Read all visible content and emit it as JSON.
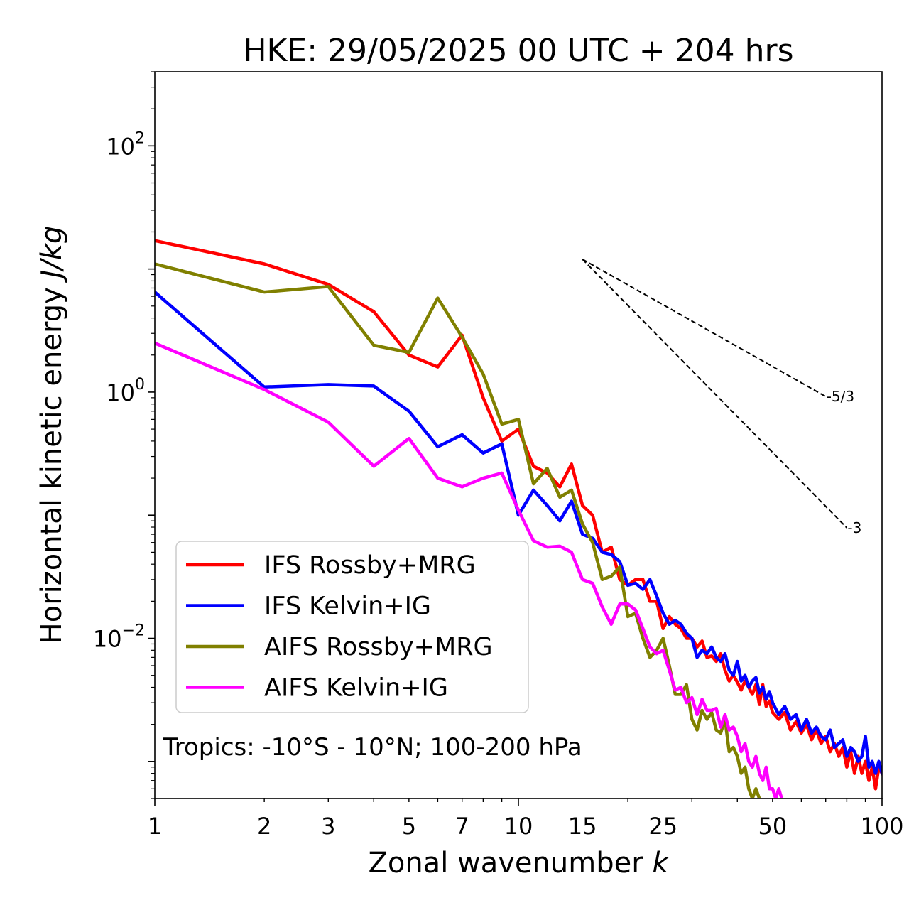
{
  "chart_data": {
    "type": "line",
    "title": "HKE: 29/05/2025 00 UTC + 204 hrs",
    "xlabel": "Zonal wavenumber",
    "xlabel_var": "k",
    "ylabel": "Horizontal kinetic energy",
    "ylabel_unit": "J/kg",
    "xscale": "log",
    "yscale": "log",
    "xlim": [
      1,
      100
    ],
    "ylim": [
      0.0005,
      400
    ],
    "x_ticks": [
      1,
      2,
      3,
      5,
      7,
      10,
      15,
      25,
      50,
      100
    ],
    "x_tick_labels": [
      "1",
      "2",
      "3",
      "5",
      "7",
      "10",
      "15",
      "25",
      "50",
      "100"
    ],
    "y_ticks": [
      {
        "value": 100,
        "base": "10",
        "exp": "2"
      },
      {
        "value": 1,
        "base": "10",
        "exp": "0"
      },
      {
        "value": 0.01,
        "base": "10",
        "exp": "−2"
      }
    ],
    "grid": false,
    "legend_position": "lower-left",
    "annotation": "Tropics: -10°S - 10°N; 100-200 hPa",
    "reference_lines": [
      {
        "label": "-5/3",
        "slope": -1.6667,
        "x_start": 15,
        "y_start": 12,
        "x_end": 70
      },
      {
        "label": "-3",
        "slope": -3,
        "x_start": 15,
        "y_start": 12,
        "x_end": 80
      }
    ],
    "series": [
      {
        "name": "IFS Rossby+MRG",
        "color": "#ff0000",
        "points": [
          [
            1,
            17
          ],
          [
            2,
            11
          ],
          [
            3,
            7.5
          ],
          [
            4,
            4.5
          ],
          [
            5,
            2
          ],
          [
            6,
            1.6
          ],
          [
            7,
            2.9
          ],
          [
            8,
            0.9
          ],
          [
            9,
            0.4
          ],
          [
            10,
            0.5
          ],
          [
            11,
            0.25
          ],
          [
            12,
            0.22
          ],
          [
            13,
            0.17
          ],
          [
            14,
            0.26
          ],
          [
            15,
            0.12
          ],
          [
            16,
            0.1
          ],
          [
            17,
            0.05
          ],
          [
            18,
            0.055
          ],
          [
            19,
            0.03
          ],
          [
            20,
            0.027
          ],
          [
            21,
            0.03
          ],
          [
            22,
            0.03
          ],
          [
            23,
            0.02
          ],
          [
            24,
            0.02
          ],
          [
            25,
            0.012
          ],
          [
            26,
            0.015
          ],
          [
            27,
            0.013
          ],
          [
            28,
            0.012
          ],
          [
            29,
            0.01
          ],
          [
            30,
            0.01
          ],
          [
            31,
            0.0085
          ],
          [
            32,
            0.0095
          ],
          [
            33,
            0.007
          ],
          [
            34,
            0.0072
          ],
          [
            35,
            0.0065
          ],
          [
            36,
            0.0075
          ],
          [
            37,
            0.0055
          ],
          [
            38,
            0.0045
          ],
          [
            39,
            0.005
          ],
          [
            40,
            0.0044
          ],
          [
            41,
            0.0038
          ],
          [
            42,
            0.0045
          ],
          [
            43,
            0.004
          ],
          [
            44,
            0.0035
          ],
          [
            45,
            0.0042
          ],
          [
            46,
            0.0029
          ],
          [
            47,
            0.0042
          ],
          [
            48,
            0.0028
          ],
          [
            49,
            0.0031
          ],
          [
            50,
            0.0025
          ],
          [
            52,
            0.0022
          ],
          [
            54,
            0.0025
          ],
          [
            56,
            0.0018
          ],
          [
            58,
            0.0021
          ],
          [
            60,
            0.0017
          ],
          [
            62,
            0.002
          ],
          [
            64,
            0.0015
          ],
          [
            66,
            0.0018
          ],
          [
            68,
            0.0014
          ],
          [
            70,
            0.0016
          ],
          [
            72,
            0.0012
          ],
          [
            74,
            0.0014
          ],
          [
            76,
            0.0011
          ],
          [
            78,
            0.0013
          ],
          [
            80,
            0.0009
          ],
          [
            82,
            0.0012
          ],
          [
            84,
            0.0008
          ],
          [
            86,
            0.0011
          ],
          [
            88,
            0.0008
          ],
          [
            90,
            0.001
          ],
          [
            92,
            0.0007
          ],
          [
            94,
            0.0009
          ],
          [
            96,
            0.0006
          ],
          [
            98,
            0.0009
          ],
          [
            100,
            0.0008
          ]
        ]
      },
      {
        "name": "IFS Kelvin+IG",
        "color": "#0000ff",
        "points": [
          [
            1,
            6.5
          ],
          [
            2,
            1.1
          ],
          [
            3,
            1.15
          ],
          [
            4,
            1.12
          ],
          [
            5,
            0.7
          ],
          [
            6,
            0.36
          ],
          [
            7,
            0.45
          ],
          [
            8,
            0.32
          ],
          [
            9,
            0.38
          ],
          [
            10,
            0.1
          ],
          [
            11,
            0.16
          ],
          [
            12,
            0.12
          ],
          [
            13,
            0.09
          ],
          [
            14,
            0.13
          ],
          [
            15,
            0.07
          ],
          [
            16,
            0.065
          ],
          [
            17,
            0.05
          ],
          [
            18,
            0.048
          ],
          [
            19,
            0.042
          ],
          [
            20,
            0.027
          ],
          [
            21,
            0.028
          ],
          [
            22,
            0.025
          ],
          [
            23,
            0.03
          ],
          [
            24,
            0.022
          ],
          [
            25,
            0.016
          ],
          [
            26,
            0.013
          ],
          [
            27,
            0.014
          ],
          [
            28,
            0.013
          ],
          [
            29,
            0.011
          ],
          [
            30,
            0.01
          ],
          [
            31,
            0.007
          ],
          [
            32,
            0.008
          ],
          [
            33,
            0.0075
          ],
          [
            34,
            0.0085
          ],
          [
            35,
            0.007
          ],
          [
            36,
            0.0065
          ],
          [
            37,
            0.0075
          ],
          [
            38,
            0.0055
          ],
          [
            39,
            0.005
          ],
          [
            40,
            0.0065
          ],
          [
            41,
            0.0045
          ],
          [
            42,
            0.005
          ],
          [
            43,
            0.004
          ],
          [
            44,
            0.0045
          ],
          [
            45,
            0.0048
          ],
          [
            46,
            0.0036
          ],
          [
            47,
            0.004
          ],
          [
            48,
            0.0032
          ],
          [
            49,
            0.0037
          ],
          [
            50,
            0.003
          ],
          [
            52,
            0.0024
          ],
          [
            54,
            0.0028
          ],
          [
            56,
            0.0022
          ],
          [
            58,
            0.0024
          ],
          [
            60,
            0.0018
          ],
          [
            62,
            0.0022
          ],
          [
            64,
            0.0017
          ],
          [
            66,
            0.0019
          ],
          [
            68,
            0.0016
          ],
          [
            70,
            0.0015
          ],
          [
            72,
            0.0018
          ],
          [
            74,
            0.0013
          ],
          [
            76,
            0.0014
          ],
          [
            78,
            0.0015
          ],
          [
            80,
            0.0011
          ],
          [
            82,
            0.0013
          ],
          [
            84,
            0.0012
          ],
          [
            86,
            0.001
          ],
          [
            88,
            0.0011
          ],
          [
            90,
            0.0016
          ],
          [
            92,
            0.0009
          ],
          [
            94,
            0.001
          ],
          [
            96,
            0.0008
          ],
          [
            98,
            0.001
          ],
          [
            100,
            0.0008
          ]
        ]
      },
      {
        "name": "AIFS Rossby+MRG",
        "color": "#808000",
        "points": [
          [
            1,
            11
          ],
          [
            2,
            6.5
          ],
          [
            3,
            7.2
          ],
          [
            4,
            2.4
          ],
          [
            5,
            2.1
          ],
          [
            6,
            5.8
          ],
          [
            7,
            2.8
          ],
          [
            8,
            1.4
          ],
          [
            9,
            0.55
          ],
          [
            10,
            0.6
          ],
          [
            11,
            0.18
          ],
          [
            12,
            0.24
          ],
          [
            13,
            0.14
          ],
          [
            14,
            0.16
          ],
          [
            15,
            0.085
          ],
          [
            16,
            0.06
          ],
          [
            17,
            0.03
          ],
          [
            18,
            0.032
          ],
          [
            19,
            0.038
          ],
          [
            20,
            0.015
          ],
          [
            21,
            0.016
          ],
          [
            22,
            0.01
          ],
          [
            23,
            0.007
          ],
          [
            24,
            0.008
          ],
          [
            25,
            0.01
          ],
          [
            26,
            0.006
          ],
          [
            27,
            0.0035
          ],
          [
            28,
            0.0035
          ],
          [
            29,
            0.0042
          ],
          [
            30,
            0.0022
          ],
          [
            31,
            0.0018
          ],
          [
            32,
            0.0026
          ],
          [
            33,
            0.0022
          ],
          [
            34,
            0.0025
          ],
          [
            35,
            0.0018
          ],
          [
            36,
            0.0017
          ],
          [
            37,
            0.0022
          ],
          [
            38,
            0.0012
          ],
          [
            39,
            0.0013
          ],
          [
            40,
            0.0011
          ],
          [
            41,
            0.0008
          ],
          [
            42,
            0.0009
          ],
          [
            43,
            0.0006
          ],
          [
            44,
            0.0005
          ],
          [
            45,
            0.0006
          ],
          [
            46,
            0.0005
          ]
        ]
      },
      {
        "name": "AIFS Kelvin+IG",
        "color": "#ff00ff",
        "points": [
          [
            1,
            2.5
          ],
          [
            2,
            1.05
          ],
          [
            3,
            0.57
          ],
          [
            4,
            0.25
          ],
          [
            5,
            0.42
          ],
          [
            6,
            0.2
          ],
          [
            7,
            0.17
          ],
          [
            8,
            0.2
          ],
          [
            9,
            0.22
          ],
          [
            10,
            0.11
          ],
          [
            11,
            0.062
          ],
          [
            12,
            0.055
          ],
          [
            13,
            0.056
          ],
          [
            14,
            0.05
          ],
          [
            15,
            0.03
          ],
          [
            16,
            0.028
          ],
          [
            17,
            0.018
          ],
          [
            18,
            0.013
          ],
          [
            19,
            0.019
          ],
          [
            20,
            0.019
          ],
          [
            21,
            0.017
          ],
          [
            22,
            0.012
          ],
          [
            23,
            0.0085
          ],
          [
            24,
            0.0075
          ],
          [
            25,
            0.008
          ],
          [
            26,
            0.0055
          ],
          [
            27,
            0.0038
          ],
          [
            28,
            0.004
          ],
          [
            29,
            0.003
          ],
          [
            30,
            0.0033
          ],
          [
            31,
            0.0024
          ],
          [
            32,
            0.0032
          ],
          [
            33,
            0.0026
          ],
          [
            34,
            0.0026
          ],
          [
            35,
            0.0027
          ],
          [
            36,
            0.0019
          ],
          [
            37,
            0.0024
          ],
          [
            38,
            0.0018
          ],
          [
            39,
            0.0019
          ],
          [
            40,
            0.0016
          ],
          [
            41,
            0.0012
          ],
          [
            42,
            0.0014
          ],
          [
            43,
            0.001
          ],
          [
            44,
            0.0009
          ],
          [
            45,
            0.0011
          ],
          [
            46,
            0.0008
          ],
          [
            47,
            0.0007
          ],
          [
            48,
            0.0009
          ],
          [
            49,
            0.0006
          ],
          [
            50,
            0.0006
          ],
          [
            51,
            0.0005
          ],
          [
            52,
            0.0006
          ],
          [
            53,
            0.0005
          ]
        ]
      }
    ]
  }
}
